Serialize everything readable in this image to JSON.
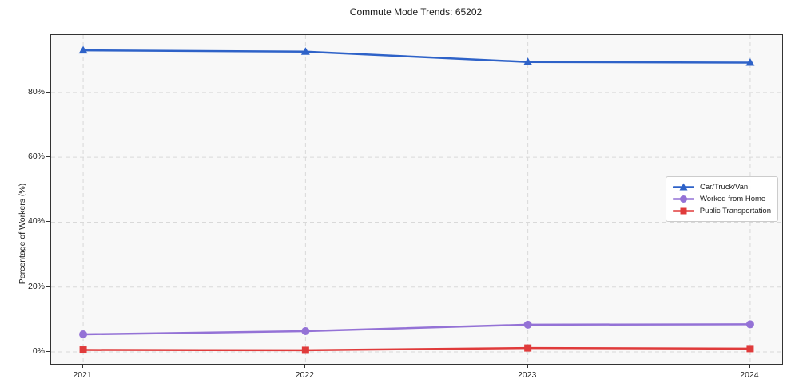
{
  "title": "Commute Mode Trends: 65202",
  "chart_data": {
    "type": "line",
    "title": "Commute Mode Trends: 65202",
    "xlabel": "",
    "ylabel": "Percentage of Workers (%)",
    "x": [
      2021,
      2022,
      2023,
      2024
    ],
    "x_tick_labels": [
      "2021",
      "2022",
      "2023",
      "2024"
    ],
    "y_ticks": [
      0,
      20,
      40,
      60,
      80
    ],
    "y_tick_labels": [
      "0%",
      "20%",
      "40%",
      "60%",
      "80%"
    ],
    "xlim": [
      2020.856,
      2024.144
    ],
    "ylim": [
      -3.7,
      97.7
    ],
    "grid": true,
    "grid_style": "dashed",
    "legend_position": "center-right",
    "series": [
      {
        "name": "Car/Truck/Van",
        "marker": "triangle",
        "color": "#2e62c8",
        "values": [
          93.0,
          92.6,
          89.4,
          89.2
        ]
      },
      {
        "name": "Worked from Home",
        "marker": "circle",
        "color": "#9472d6",
        "values": [
          5.4,
          6.4,
          8.4,
          8.5
        ]
      },
      {
        "name": "Public Transportation",
        "marker": "square",
        "color": "#e03b3b",
        "values": [
          0.6,
          0.5,
          1.2,
          1.0
        ]
      }
    ]
  },
  "style": {
    "plot_background": "#f8f8f8",
    "grid_color": "#d9d9d9",
    "axis_color": "#333333",
    "text_color": "#1a1a1a"
  }
}
